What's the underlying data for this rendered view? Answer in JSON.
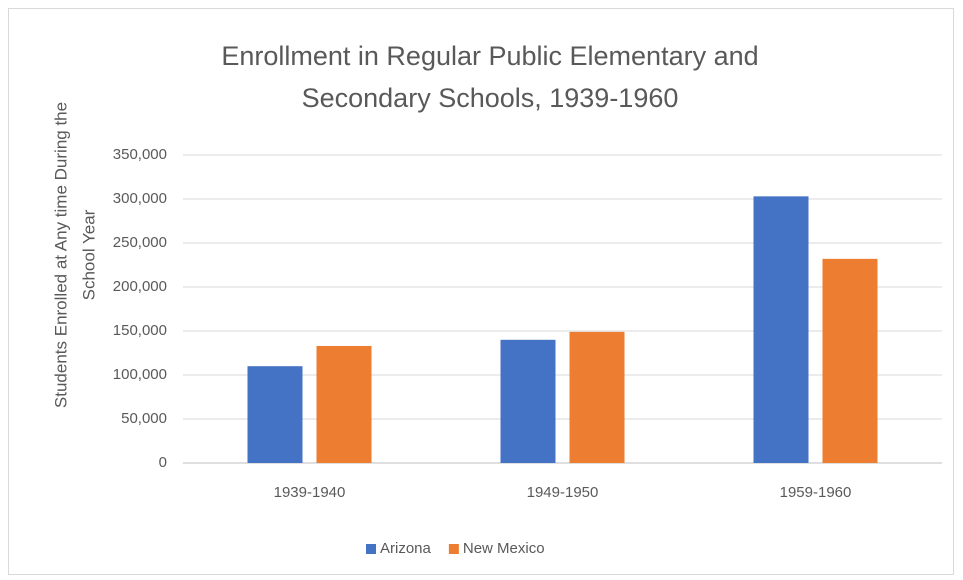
{
  "chart_data": {
    "type": "bar",
    "title": [
      "Enrollment in Regular Public Elementary and",
      "Secondary Schools, 1939-1960"
    ],
    "ylabel": [
      "Students Enrolled at Any time During the",
      "School Year"
    ],
    "categories": [
      "1939-1940",
      "1949-1950",
      "1959-1960"
    ],
    "series": [
      {
        "name": "Arizona",
        "color": "#4472c4",
        "values": [
          110000,
          140000,
          303000
        ]
      },
      {
        "name": "New Mexico",
        "color": "#ed7d31",
        "values": [
          133000,
          149000,
          232000
        ]
      }
    ],
    "ylim": [
      0,
      350000
    ],
    "yticks": [
      0,
      {
        "value": 50000,
        "label": "50,000"
      },
      {
        "value": 100000,
        "label": "100,000"
      },
      {
        "value": 150000,
        "label": "150,000"
      },
      {
        "value": 200000,
        "label": "200,000"
      },
      {
        "value": 250000,
        "label": "250,000"
      },
      {
        "value": 300000,
        "label": "300,000"
      },
      {
        "value": 350000,
        "label": "350,000"
      }
    ],
    "grid": true,
    "legend": "bottom"
  }
}
